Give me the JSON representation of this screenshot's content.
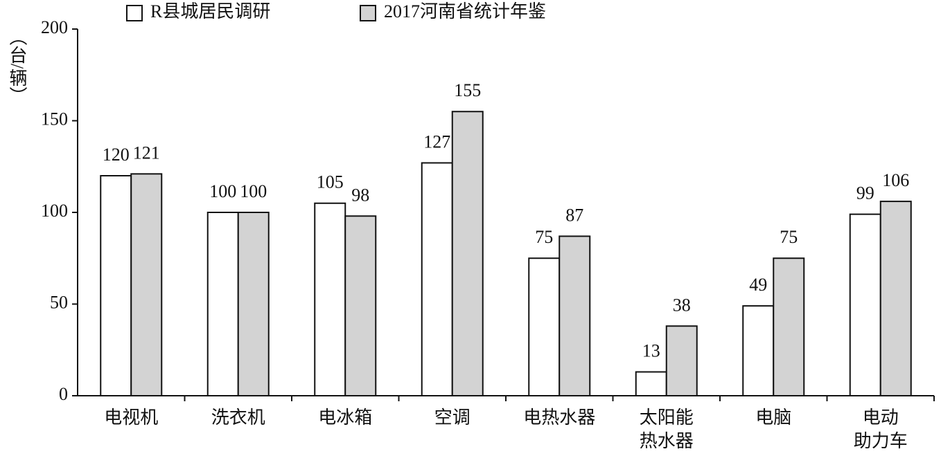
{
  "chart_data": {
    "type": "bar",
    "y_label": "（台/辆）",
    "categories": [
      "电视机",
      "洗衣机",
      "电冰箱",
      "空调",
      "电热水器",
      "太阳能\n热水器",
      "电脑",
      "电动\n助力车"
    ],
    "series": [
      {
        "name": "R县城居民调研",
        "color": "#ffffff",
        "values": [
          120,
          100,
          105,
          127,
          75,
          13,
          49,
          99
        ]
      },
      {
        "name": "2017河南省统计年鉴",
        "color": "#d3d3d3",
        "values": [
          121,
          100,
          98,
          155,
          87,
          38,
          75,
          106
        ]
      }
    ],
    "ylim": [
      0,
      200
    ],
    "yticks": [
      0,
      50,
      100,
      150,
      200
    ]
  }
}
